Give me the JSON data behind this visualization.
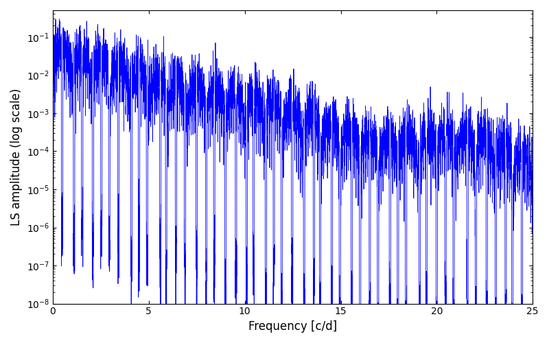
{
  "title": "",
  "xlabel": "Frequency [c/d]",
  "ylabel": "LS amplitude (log scale)",
  "line_color": "#0000FF",
  "line_width": 0.6,
  "xlim": [
    0,
    25
  ],
  "ylim": [
    1e-08,
    0.5
  ],
  "freq_min": 0.001,
  "freq_max": 25.0,
  "num_points": 8000,
  "seed": 7,
  "background_color": "#ffffff",
  "figsize": [
    8.0,
    5.0
  ],
  "dpi": 100
}
